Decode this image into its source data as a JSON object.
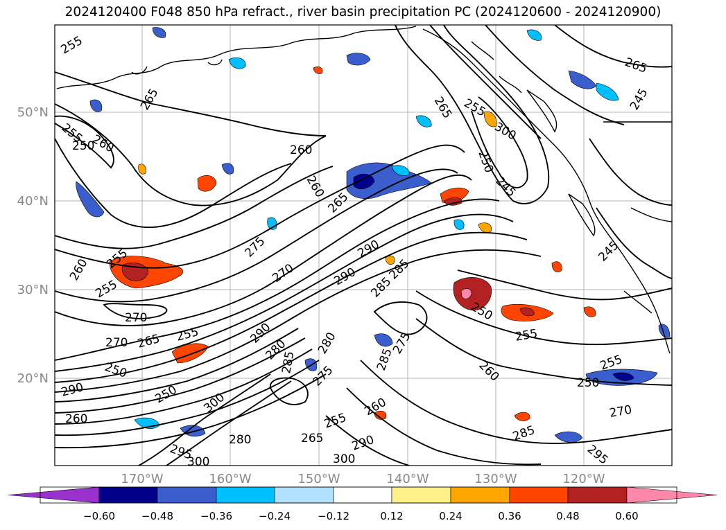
{
  "title": "2024120400 F048 850 hPa refract., river basin precipitation PC (2024120600 - 2024120900)",
  "lat_labels": [
    "50°N",
    "40°N",
    "30°N",
    "20°N"
  ],
  "lon_labels": [
    "170°W",
    "160°W",
    "150°W",
    "140°W",
    "130°W",
    "120°W"
  ],
  "colorbar": {
    "colors": [
      "#9932cc",
      "#00008b",
      "#3a5fcd",
      "#00bfff",
      "#b0e2ff",
      "#ffffff",
      "#fff08a",
      "#ffa500",
      "#ff4500",
      "#b22222",
      "#ff88aa"
    ],
    "tick_labels": [
      "−0.60",
      "−0.48",
      "−0.36",
      "−0.24",
      "−0.12",
      "0.12",
      "0.24",
      "0.36",
      "0.48",
      "0.60"
    ]
  },
  "contour_labels": [
    "255",
    "265",
    "255",
    "250",
    "260",
    "260",
    "260",
    "265",
    "265",
    "255",
    "300",
    "250",
    "245",
    "265",
    "245",
    "290",
    "290",
    "285",
    "285",
    "275",
    "270",
    "270",
    "260",
    "255",
    "270",
    "265",
    "255",
    "250",
    "255",
    "250",
    "260",
    "245",
    "250",
    "255",
    "290",
    "280",
    "285",
    "280",
    "275",
    "285",
    "275",
    "300",
    "290",
    "295",
    "300",
    "280",
    "265",
    "255",
    "260",
    "300",
    "285",
    "295",
    "270",
    "250",
    "255",
    "290",
    "260"
  ]
}
